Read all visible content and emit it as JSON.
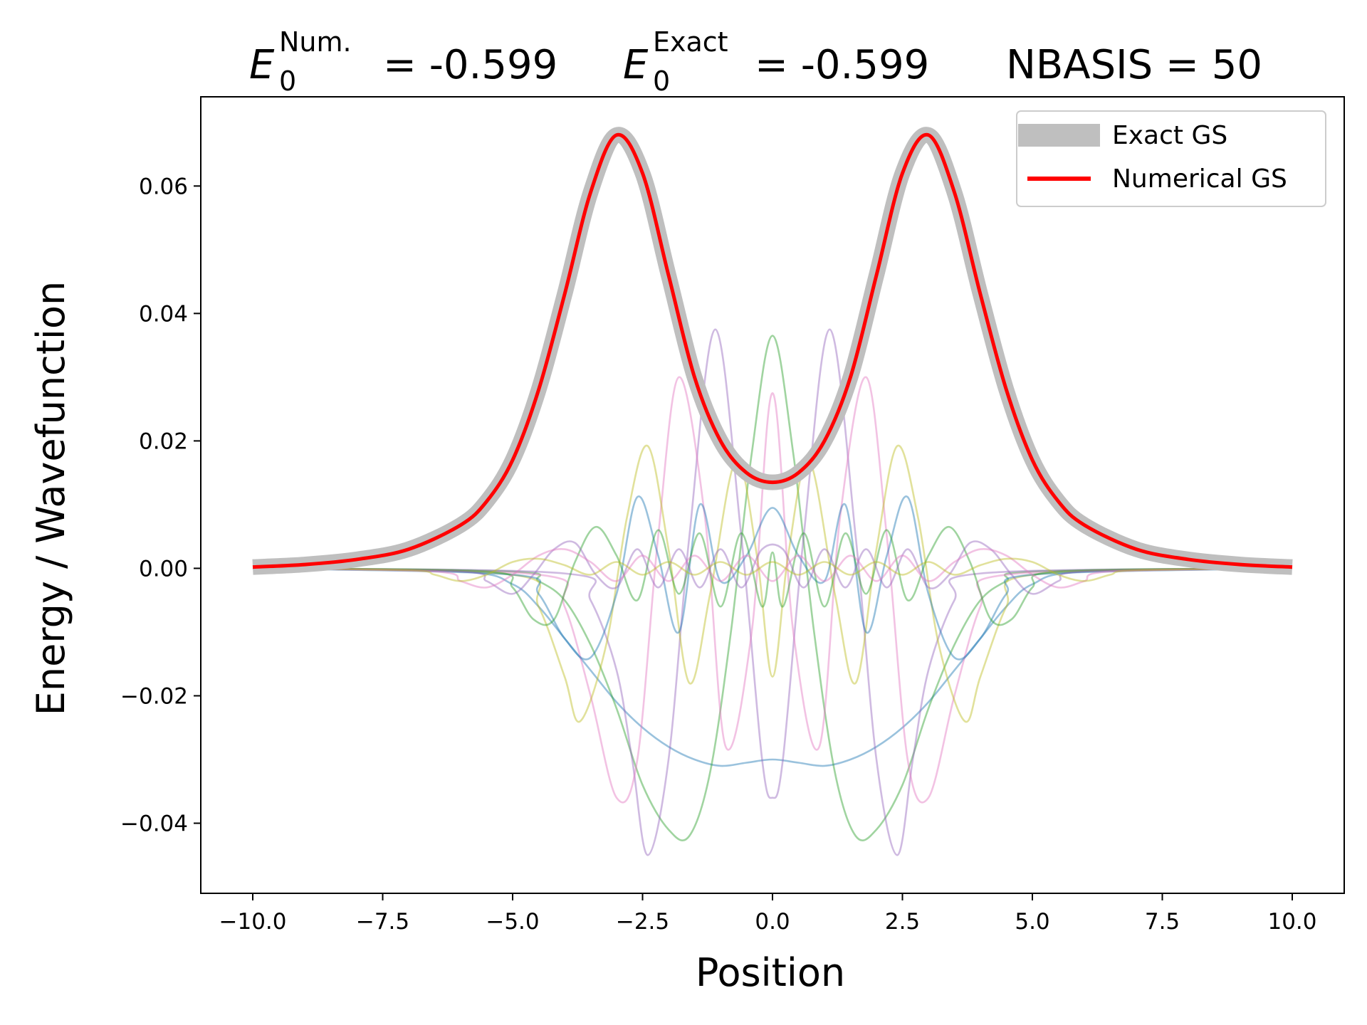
{
  "chart_data": {
    "type": "line",
    "title": {
      "e0_symbol": "E",
      "e0_sub": "0",
      "num_sup": "Num.",
      "num_value": "= -0.599",
      "exact_sup": "Exact",
      "exact_value": "= -0.599",
      "nbasis": "NBASIS = 50"
    },
    "xlabel": "Position",
    "ylabel": "Energy / Wavefunction",
    "xlim": [
      -11.0,
      11.0
    ],
    "ylim": [
      -0.051,
      0.074
    ],
    "x_ticks": [
      -10.0,
      -7.5,
      -5.0,
      -2.5,
      0.0,
      2.5,
      5.0,
      7.5,
      10.0
    ],
    "x_tick_labels": [
      "−10.0",
      "−7.5",
      "−5.0",
      "−2.5",
      "0.0",
      "2.5",
      "5.0",
      "7.5",
      "10.0"
    ],
    "y_ticks": [
      -0.04,
      -0.02,
      0.0,
      0.02,
      0.04,
      0.06
    ],
    "y_tick_labels": [
      "−0.04",
      "−0.02",
      "0.00",
      "0.02",
      "0.04",
      "0.06"
    ],
    "grid": false,
    "legend_position": "top-right",
    "series": [
      {
        "name": "Exact GS",
        "color": "#bfbfbf",
        "x": [
          -10.0,
          -9.0,
          -8.0,
          -7.0,
          -6.0,
          -5.5,
          -5.0,
          -4.5,
          -4.0,
          -3.5,
          -3.0,
          -2.5,
          -2.0,
          -1.5,
          -1.0,
          -0.5,
          0.0,
          0.5,
          1.0,
          1.5,
          2.0,
          2.5,
          3.0,
          3.5,
          4.0,
          4.5,
          5.0,
          5.5,
          6.0,
          7.0,
          8.0,
          9.0,
          10.0
        ],
        "y": [
          0.0002,
          0.0006,
          0.0014,
          0.003,
          0.0068,
          0.0105,
          0.017,
          0.028,
          0.043,
          0.059,
          0.068,
          0.062,
          0.046,
          0.03,
          0.02,
          0.015,
          0.0135,
          0.015,
          0.02,
          0.03,
          0.046,
          0.062,
          0.068,
          0.059,
          0.043,
          0.028,
          0.017,
          0.0105,
          0.0068,
          0.003,
          0.0014,
          0.0006,
          0.0002
        ]
      },
      {
        "name": "Numerical GS",
        "color": "#ff0000",
        "x": [
          -10.0,
          -9.0,
          -8.0,
          -7.0,
          -6.0,
          -5.5,
          -5.0,
          -4.5,
          -4.0,
          -3.5,
          -3.0,
          -2.5,
          -2.0,
          -1.5,
          -1.0,
          -0.5,
          0.0,
          0.5,
          1.0,
          1.5,
          2.0,
          2.5,
          3.0,
          3.5,
          4.0,
          4.5,
          5.0,
          5.5,
          6.0,
          7.0,
          8.0,
          9.0,
          10.0
        ],
        "y": [
          0.0002,
          0.0006,
          0.0014,
          0.003,
          0.0068,
          0.0105,
          0.017,
          0.028,
          0.043,
          0.059,
          0.068,
          0.062,
          0.046,
          0.03,
          0.02,
          0.015,
          0.0135,
          0.015,
          0.02,
          0.03,
          0.046,
          0.062,
          0.068,
          0.059,
          0.043,
          0.028,
          0.017,
          0.0105,
          0.0068,
          0.003,
          0.0014,
          0.0006,
          0.0002
        ]
      }
    ],
    "basis_functions": {
      "description_of_color_cycle": [
        "#1f77b4",
        "#2ca02c",
        "#d62728",
        "#9467bd",
        "#e377c2",
        "#bcbd22"
      ],
      "curves": [
        {
          "color": "#1f77b4",
          "x": [
            -10,
            -6,
            -5,
            -4.5,
            -4,
            -3.5,
            -3,
            -2.5,
            -2,
            -1.5,
            -1,
            -0.5,
            0,
            0.5,
            1,
            1.5,
            2,
            2.5,
            3,
            3.5,
            4,
            4.5,
            5,
            6,
            10
          ],
          "y": [
            0,
            -0.0005,
            -0.0025,
            -0.006,
            -0.011,
            -0.016,
            -0.021,
            -0.025,
            -0.028,
            -0.03,
            -0.031,
            -0.0305,
            -0.03,
            -0.0305,
            -0.031,
            -0.03,
            -0.028,
            -0.025,
            -0.021,
            -0.016,
            -0.011,
            -0.006,
            -0.0025,
            -0.0005,
            0
          ]
        },
        {
          "color": "#2ca02c",
          "x": [
            -10,
            -5,
            -4.5,
            -4,
            -3.5,
            -3,
            -2.5,
            -2,
            -1.6,
            -1.2,
            -0.8,
            -0.4,
            0,
            0.4,
            0.8,
            1.2,
            1.6,
            2,
            2.5,
            3,
            3.5,
            4,
            4.5,
            5,
            10
          ],
          "y": [
            0,
            -0.0005,
            -0.002,
            -0.005,
            -0.012,
            -0.022,
            -0.034,
            -0.041,
            -0.042,
            -0.032,
            -0.01,
            0.018,
            0.0365,
            0.018,
            -0.01,
            -0.032,
            -0.042,
            -0.041,
            -0.034,
            -0.022,
            -0.012,
            -0.005,
            -0.002,
            -0.0005,
            0
          ]
        },
        {
          "color": "#9467bd",
          "x": [
            -10,
            -4,
            -3.5,
            -3,
            -2.7,
            -2.4,
            -2.0,
            -1.6,
            -1.1,
            -0.6,
            -0.2,
            0,
            0.2,
            0.6,
            1.1,
            1.6,
            2.0,
            2.4,
            2.7,
            3,
            3.5,
            4,
            10
          ],
          "y": [
            0,
            -0.0008,
            -0.005,
            -0.016,
            -0.03,
            -0.045,
            -0.03,
            0.005,
            0.0375,
            0.005,
            -0.03,
            -0.036,
            -0.03,
            0.005,
            0.0375,
            0.005,
            -0.03,
            -0.045,
            -0.03,
            -0.016,
            -0.005,
            -0.0008,
            0
          ]
        },
        {
          "color": "#e377c2",
          "x": [
            -10,
            -4.5,
            -4,
            -3.5,
            -3.0,
            -2.6,
            -2.2,
            -1.8,
            -1.3,
            -0.9,
            -0.4,
            0,
            0.4,
            0.9,
            1.3,
            1.8,
            2.2,
            2.6,
            3.0,
            3.5,
            4,
            4.5,
            10
          ],
          "y": [
            0,
            -0.001,
            -0.006,
            -0.02,
            -0.036,
            -0.03,
            0.005,
            0.03,
            0.008,
            -0.028,
            -0.01,
            0.0275,
            -0.01,
            -0.028,
            0.008,
            0.03,
            0.005,
            -0.03,
            -0.036,
            -0.02,
            -0.006,
            -0.001,
            0
          ]
        },
        {
          "color": "#bcbd22",
          "x": [
            -10,
            -5,
            -4.5,
            -4.0,
            -3.7,
            -3.2,
            -2.8,
            -2.4,
            -2.0,
            -1.6,
            -1.2,
            -0.7,
            -0.3,
            0,
            0.3,
            0.7,
            1.2,
            1.6,
            2.0,
            2.4,
            2.8,
            3.2,
            3.7,
            4.0,
            4.5,
            5,
            10
          ],
          "y": [
            0,
            -0.001,
            -0.006,
            -0.017,
            -0.024,
            -0.012,
            0.008,
            0.0192,
            0.003,
            -0.018,
            -0.004,
            0.017,
            0.002,
            -0.017,
            0.002,
            0.017,
            -0.004,
            -0.018,
            0.003,
            0.0192,
            0.008,
            -0.012,
            -0.024,
            -0.017,
            -0.006,
            -0.001,
            0
          ]
        },
        {
          "color": "#1f77b4",
          "x": [
            -10,
            -5,
            -4.5,
            -4,
            -3.5,
            -3.0,
            -2.6,
            -2.2,
            -1.8,
            -1.4,
            -1.0,
            -0.5,
            0,
            0.5,
            1.0,
            1.4,
            1.8,
            2.2,
            2.6,
            3.0,
            3.5,
            4,
            4.5,
            5,
            10
          ],
          "y": [
            0,
            -0.001,
            -0.004,
            -0.011,
            -0.014,
            -0.004,
            0.0112,
            0.002,
            -0.01,
            0.01,
            -0.002,
            0.002,
            0.0095,
            0.002,
            -0.002,
            0.01,
            -0.01,
            0.002,
            0.0112,
            -0.004,
            -0.014,
            -0.011,
            -0.004,
            -0.001,
            0
          ]
        },
        {
          "color": "#2ca02c",
          "x": [
            -10,
            -5.5,
            -5,
            -4.6,
            -4.2,
            -3.8,
            -3.4,
            -3.0,
            -2.6,
            -2.2,
            -1.8,
            -1.4,
            -1.0,
            -0.6,
            -0.2,
            0,
            0.2,
            0.6,
            1.0,
            1.4,
            1.8,
            2.2,
            2.6,
            3.0,
            3.4,
            3.8,
            4.2,
            4.6,
            5,
            5.5,
            10
          ],
          "y": [
            0,
            -0.0005,
            -0.003,
            -0.008,
            -0.008,
            0.001,
            0.0065,
            0.002,
            -0.005,
            0.006,
            -0.004,
            0.0055,
            -0.006,
            0.0055,
            -0.006,
            0.0025,
            -0.006,
            0.0055,
            -0.006,
            0.0055,
            -0.004,
            0.006,
            -0.005,
            0.002,
            0.0065,
            0.001,
            -0.008,
            -0.008,
            -0.003,
            -0.0005,
            0
          ]
        },
        {
          "color": "#9467bd",
          "x": [
            -10,
            -6,
            -5.5,
            -5,
            -4.6,
            -4.2,
            -3.8,
            -3.4,
            -3.0,
            -2.6,
            -2.2,
            -1.8,
            -1.4,
            -1.0,
            -0.6,
            -0.2,
            0.2,
            0.6,
            1.0,
            1.4,
            1.8,
            2.2,
            2.6,
            3.0,
            3.4,
            3.8,
            4.2,
            4.6,
            5,
            5.5,
            6,
            10
          ],
          "y": [
            0,
            -0.0005,
            -0.002,
            -0.004,
            -0.001,
            0.003,
            0.004,
            -0.001,
            -0.003,
            0.003,
            -0.003,
            0.003,
            -0.003,
            0.003,
            -0.003,
            0.003,
            0.003,
            -0.003,
            0.003,
            -0.003,
            0.003,
            -0.003,
            0.003,
            -0.003,
            -0.001,
            0.004,
            0.003,
            -0.001,
            -0.004,
            -0.002,
            -0.0005,
            0
          ]
        },
        {
          "color": "#e377c2",
          "x": [
            -10,
            -6.5,
            -6,
            -5.5,
            -5,
            -4.5,
            -4,
            -3.5,
            -3,
            -2.5,
            -2,
            -1.5,
            -1,
            -0.5,
            0,
            0.5,
            1,
            1.5,
            2,
            2.5,
            3,
            3.5,
            4,
            4.5,
            5,
            5.5,
            6,
            6.5,
            10
          ],
          "y": [
            0,
            -0.0005,
            -0.002,
            -0.003,
            -0.001,
            0.002,
            0.003,
            0.001,
            -0.002,
            0.002,
            -0.002,
            0.002,
            -0.002,
            0.002,
            -0.002,
            0.002,
            -0.002,
            0.002,
            -0.002,
            0.002,
            -0.002,
            0.001,
            0.003,
            0.002,
            -0.001,
            -0.003,
            -0.002,
            -0.0005,
            0
          ]
        },
        {
          "color": "#bcbd22",
          "x": [
            -10,
            -7,
            -6.5,
            -6,
            -5.5,
            -5,
            -4.5,
            -4,
            -3.5,
            -3,
            -2.5,
            -2,
            -1.5,
            -1,
            -0.5,
            0,
            0.5,
            1,
            1.5,
            2,
            2.5,
            3,
            3.5,
            4,
            4.5,
            5,
            5.5,
            6,
            6.5,
            7,
            10
          ],
          "y": [
            0,
            -0.0003,
            -0.001,
            -0.002,
            -0.001,
            0.001,
            0.0015,
            0.0005,
            -0.001,
            0.001,
            -0.001,
            0.001,
            -0.001,
            0.001,
            -0.001,
            0.001,
            -0.001,
            0.001,
            -0.001,
            0.001,
            -0.001,
            0.001,
            -0.001,
            0.0005,
            0.0015,
            0.001,
            -0.001,
            -0.002,
            -0.001,
            -0.0003,
            0
          ]
        }
      ]
    }
  }
}
